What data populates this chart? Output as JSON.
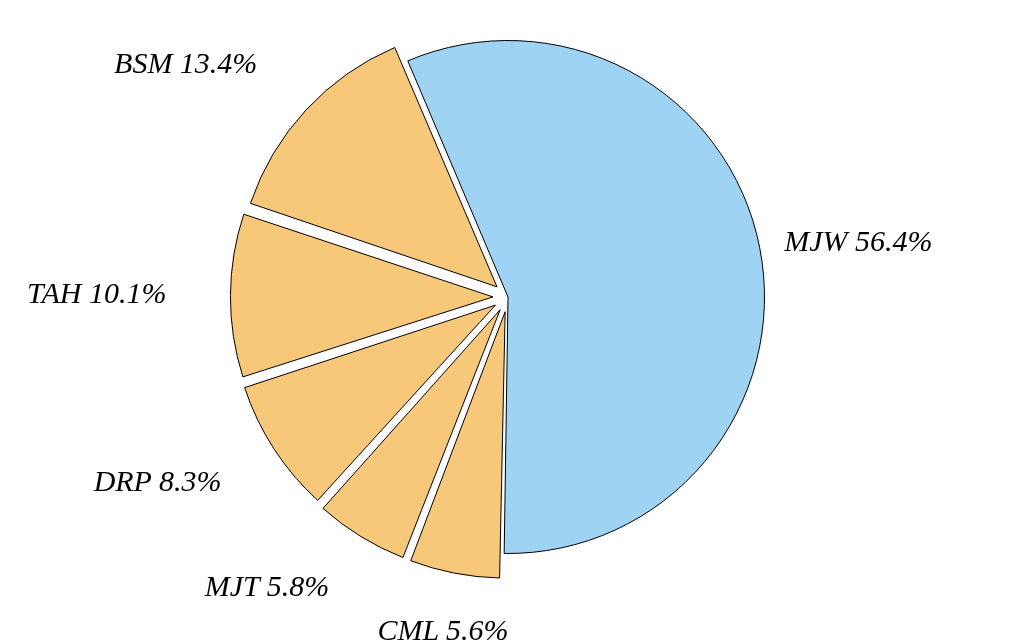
{
  "chart_data": {
    "type": "pie",
    "categories": [
      "MJW",
      "CML",
      "MJT",
      "DRP",
      "TAH",
      "BSM"
    ],
    "values": [
      56.4,
      5.6,
      5.8,
      8.3,
      10.1,
      13.4
    ],
    "colors": [
      "#9fd3f4",
      "#f7c77a",
      "#f7c77a",
      "#f7c77a",
      "#f7c77a",
      "#f7c77a"
    ],
    "value_labels": [
      "56.4%",
      "5.6%",
      "5.8%",
      "8.3%",
      "10.1%",
      "13.4%"
    ],
    "legend": false
  }
}
